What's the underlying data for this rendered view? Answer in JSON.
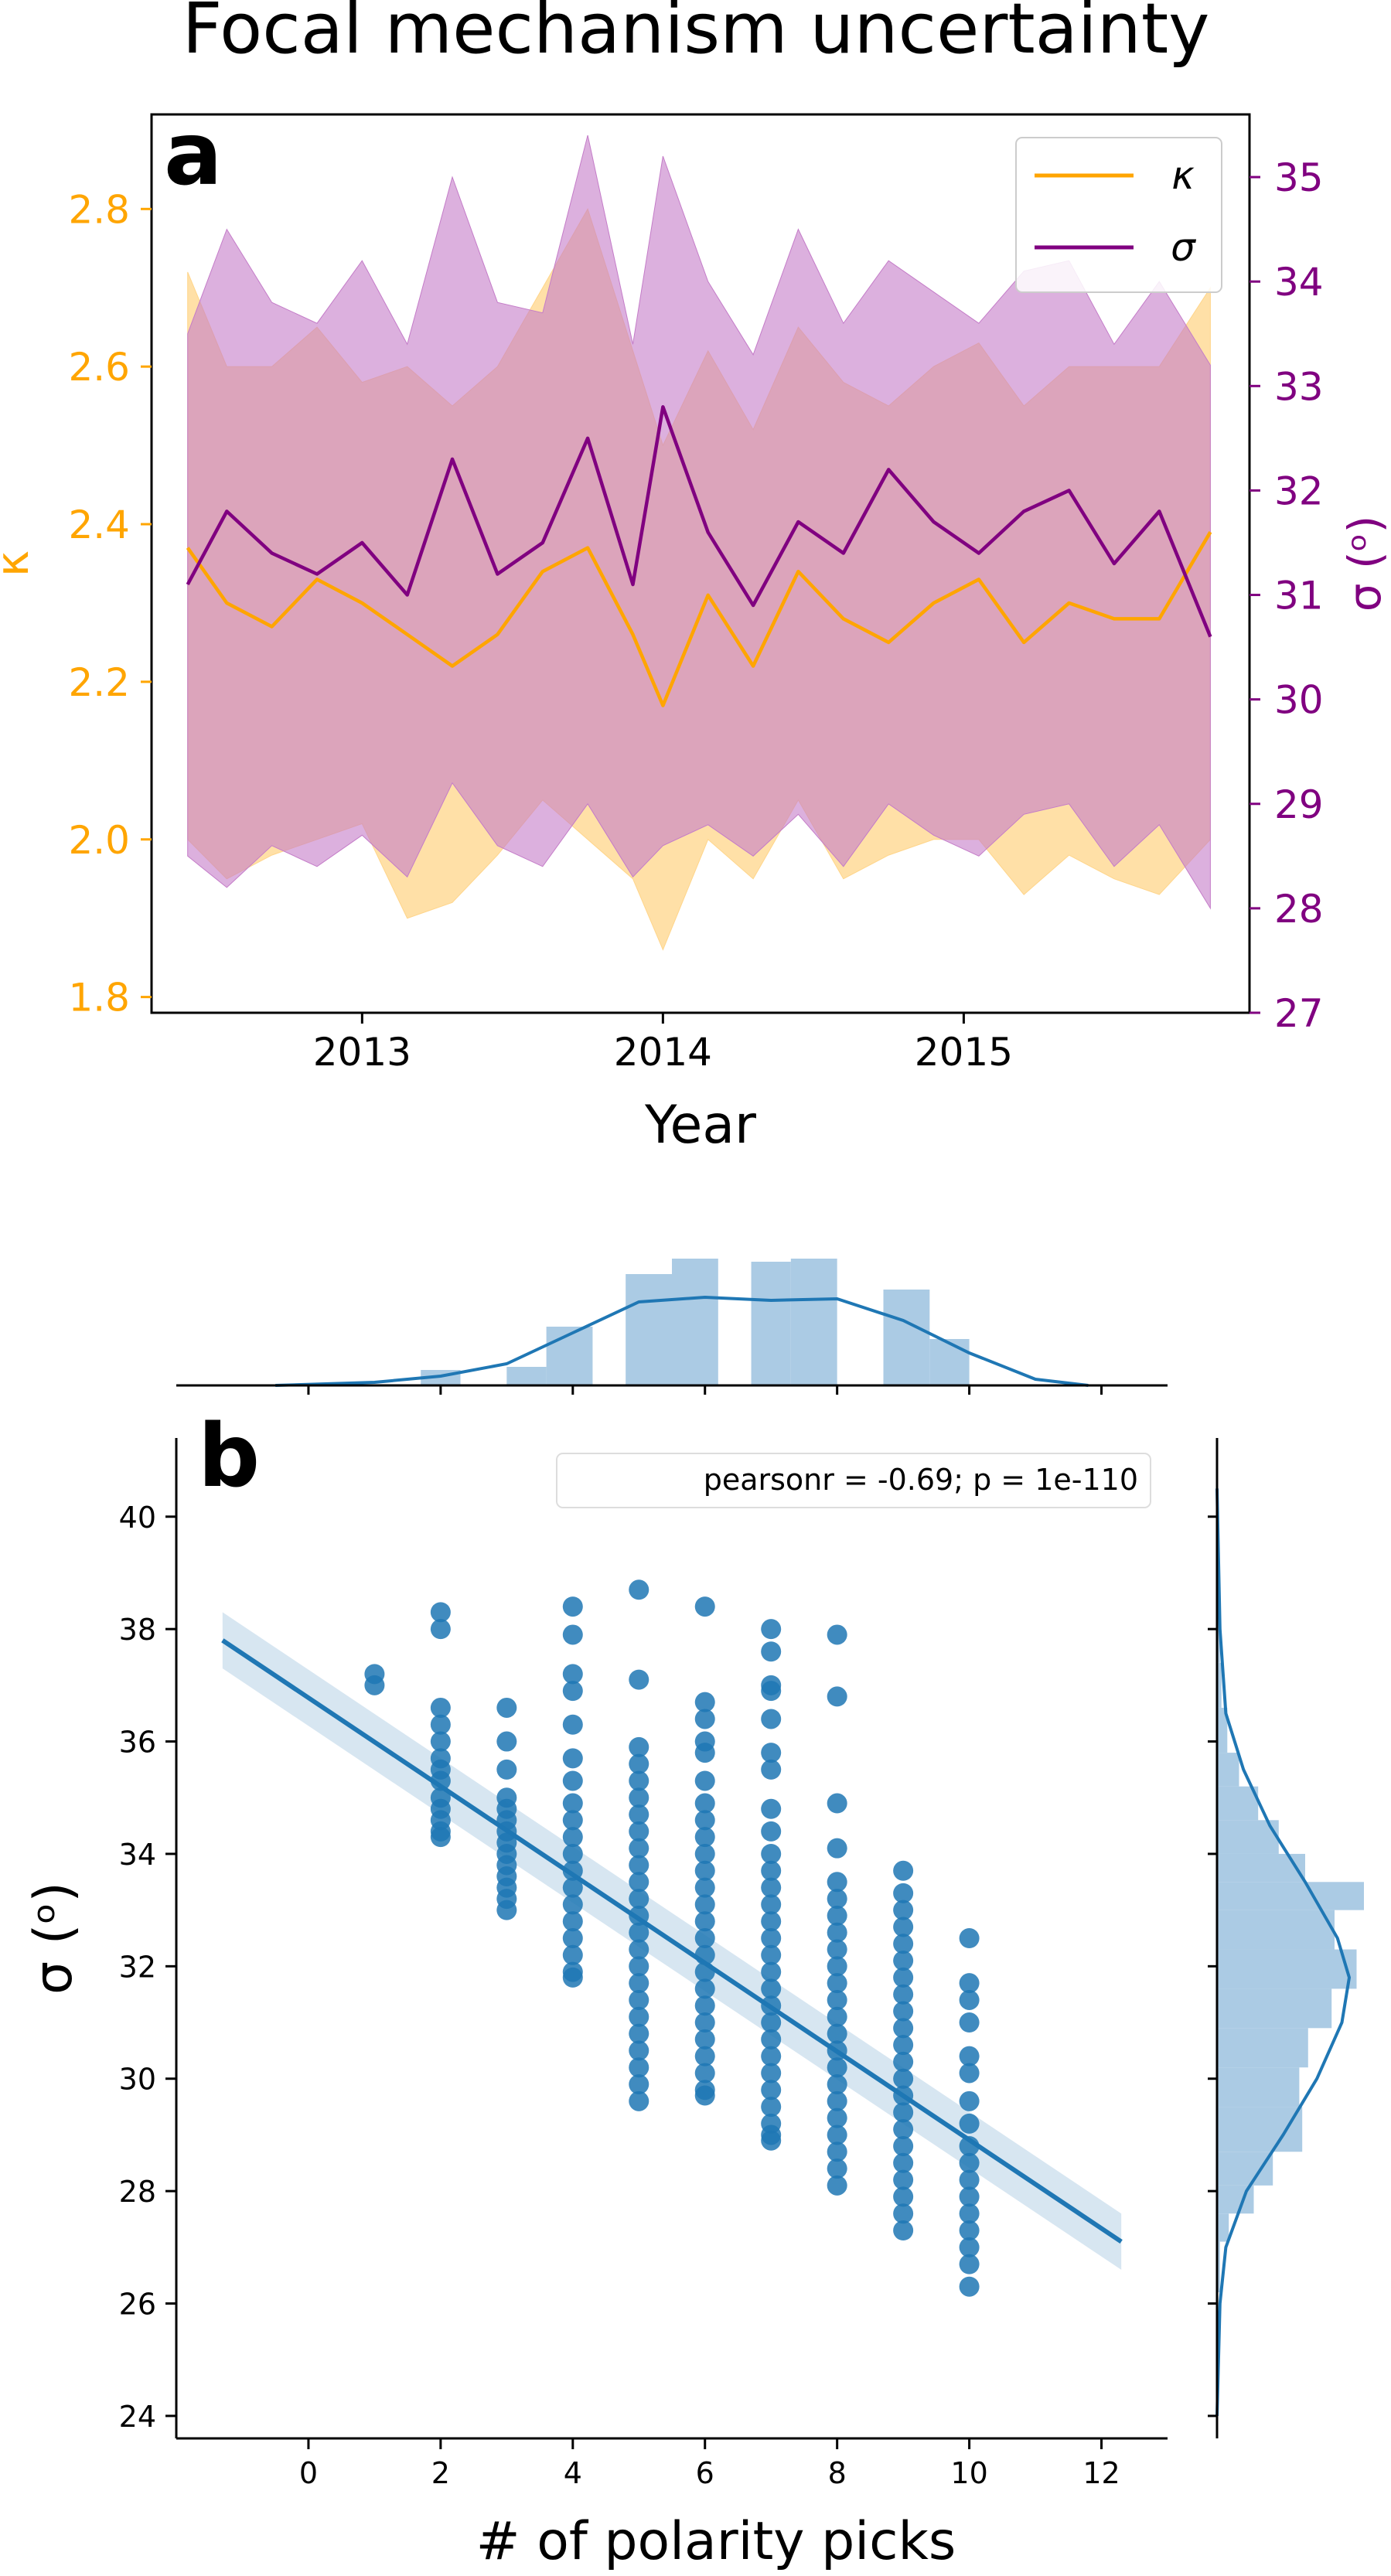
{
  "figure": {
    "title": "Focal mechanism uncertainty",
    "panel_a_label": "a",
    "panel_b_label": "b"
  },
  "colors": {
    "kappa": "#ffa500",
    "kappa_band": "#ffd58a",
    "sigma": "#800080",
    "sigma_band": "#c47cc8",
    "blue": "#1f77b4",
    "blue_light": "#a6c8e3",
    "axis": "#000000"
  },
  "chart_data": [
    {
      "type": "line",
      "panel": "a",
      "xlabel": "Year",
      "x_ticks": [
        "2013",
        "2014",
        "2015"
      ],
      "xlim": [
        2012.3,
        2015.95
      ],
      "ylabel_left": "κ",
      "ylabel_right": "σ (ᵒ)",
      "ylim_left": [
        1.78,
        2.92
      ],
      "ylim_right": [
        27.0,
        35.6
      ],
      "y_ticks_left": [
        "1.8",
        "2.0",
        "2.2",
        "2.4",
        "2.6",
        "2.8"
      ],
      "y_ticks_right": [
        "27",
        "28",
        "29",
        "30",
        "31",
        "32",
        "33",
        "34",
        "35"
      ],
      "legend": {
        "position": "upper right",
        "entries": [
          {
            "label": "κ"
          },
          {
            "label": "σ"
          }
        ]
      },
      "series": [
        {
          "name": "κ",
          "axis": "left",
          "x": [
            2012.42,
            2012.55,
            2012.7,
            2012.85,
            2013.0,
            2013.15,
            2013.3,
            2013.45,
            2013.6,
            2013.75,
            2013.9,
            2014.0,
            2014.15,
            2014.3,
            2014.45,
            2014.6,
            2014.75,
            2014.9,
            2015.05,
            2015.2,
            2015.35,
            2015.5,
            2015.65,
            2015.82
          ],
          "y": [
            2.37,
            2.3,
            2.27,
            2.33,
            2.3,
            2.26,
            2.22,
            2.26,
            2.34,
            2.37,
            2.26,
            2.17,
            2.31,
            2.22,
            2.34,
            2.28,
            2.25,
            2.3,
            2.33,
            2.25,
            2.3,
            2.28,
            2.28,
            2.39
          ],
          "lower": [
            2.0,
            1.95,
            1.98,
            2.0,
            2.02,
            1.9,
            1.92,
            1.98,
            2.05,
            2.0,
            1.95,
            1.86,
            2.0,
            1.95,
            2.05,
            1.95,
            1.98,
            2.0,
            2.0,
            1.93,
            1.98,
            1.95,
            1.93,
            2.0
          ],
          "upper": [
            2.72,
            2.6,
            2.6,
            2.65,
            2.58,
            2.6,
            2.55,
            2.6,
            2.7,
            2.8,
            2.62,
            2.5,
            2.62,
            2.52,
            2.65,
            2.58,
            2.55,
            2.6,
            2.63,
            2.55,
            2.6,
            2.6,
            2.6,
            2.7
          ]
        },
        {
          "name": "σ",
          "axis": "right",
          "x": [
            2012.42,
            2012.55,
            2012.7,
            2012.85,
            2013.0,
            2013.15,
            2013.3,
            2013.45,
            2013.6,
            2013.75,
            2013.9,
            2014.0,
            2014.15,
            2014.3,
            2014.45,
            2014.6,
            2014.75,
            2014.9,
            2015.05,
            2015.2,
            2015.35,
            2015.5,
            2015.65,
            2015.82
          ],
          "y": [
            31.1,
            31.8,
            31.4,
            31.2,
            31.5,
            31.0,
            32.3,
            31.2,
            31.5,
            32.5,
            31.1,
            32.8,
            31.6,
            30.9,
            31.7,
            31.4,
            32.2,
            31.7,
            31.4,
            31.8,
            32.0,
            31.3,
            31.8,
            30.6
          ],
          "lower": [
            28.5,
            28.2,
            28.6,
            28.4,
            28.7,
            28.3,
            29.2,
            28.6,
            28.4,
            29.0,
            28.3,
            28.6,
            28.8,
            28.5,
            28.9,
            28.4,
            29.0,
            28.7,
            28.5,
            28.9,
            29.0,
            28.4,
            28.8,
            28.0
          ],
          "upper": [
            33.5,
            34.5,
            33.8,
            33.6,
            34.2,
            33.4,
            35.0,
            33.8,
            33.7,
            35.4,
            33.4,
            35.2,
            34.0,
            33.3,
            34.5,
            33.6,
            34.2,
            33.9,
            33.6,
            34.1,
            34.2,
            33.4,
            34.0,
            33.2
          ]
        }
      ]
    },
    {
      "type": "scatter",
      "panel": "b",
      "xlabel": "# of polarity picks",
      "ylabel": "σ (ᵒ)",
      "xlim": [
        -2,
        13
      ],
      "ylim": [
        23.6,
        41.4
      ],
      "x_ticks": [
        "0",
        "2",
        "4",
        "6",
        "8",
        "10",
        "12"
      ],
      "y_ticks": [
        "24",
        "26",
        "28",
        "30",
        "32",
        "34",
        "36",
        "38",
        "40"
      ],
      "annotation": "pearsonr = -0.69; p = 1e-110",
      "regression": {
        "x": [
          -1.3,
          12.3
        ],
        "y": [
          37.8,
          27.1
        ]
      },
      "points": [
        {
          "x": 1,
          "y": [
            37.0,
            37.2
          ]
        },
        {
          "x": 2,
          "y": [
            38.3,
            38.0,
            36.6,
            36.3,
            36.0,
            35.7,
            35.5,
            35.3,
            35.0,
            34.8,
            34.6,
            34.4,
            34.3
          ]
        },
        {
          "x": 3,
          "y": [
            36.6,
            36.0,
            35.5,
            35.0,
            34.8,
            34.6,
            34.4,
            34.2,
            34.0,
            33.8,
            33.6,
            33.4,
            33.2,
            33.0
          ]
        },
        {
          "x": 4,
          "y": [
            38.4,
            37.9,
            37.2,
            36.9,
            36.3,
            35.7,
            35.3,
            34.9,
            34.6,
            34.3,
            34.0,
            33.7,
            33.4,
            33.1,
            32.8,
            32.5,
            32.2,
            31.9,
            31.8
          ]
        },
        {
          "x": 5,
          "y": [
            38.7,
            37.1,
            35.9,
            35.6,
            35.3,
            35.0,
            34.7,
            34.4,
            34.1,
            33.8,
            33.5,
            33.2,
            32.9,
            32.6,
            32.3,
            32.0,
            31.7,
            31.4,
            31.1,
            30.8,
            30.5,
            30.2,
            29.9,
            29.6
          ]
        },
        {
          "x": 6,
          "y": [
            38.4,
            36.7,
            36.4,
            36.0,
            35.8,
            35.3,
            34.9,
            34.6,
            34.3,
            34.0,
            33.7,
            33.4,
            33.1,
            32.8,
            32.5,
            32.2,
            31.9,
            31.6,
            31.3,
            31.0,
            30.7,
            30.4,
            30.1,
            29.8,
            29.7
          ]
        },
        {
          "x": 7,
          "y": [
            38.0,
            37.6,
            37.0,
            36.9,
            36.4,
            35.8,
            35.5,
            34.8,
            34.4,
            34.0,
            33.7,
            33.4,
            33.1,
            32.8,
            32.5,
            32.2,
            31.9,
            31.6,
            31.3,
            31.0,
            30.7,
            30.4,
            30.1,
            29.8,
            29.5,
            29.2,
            29.0,
            28.9
          ]
        },
        {
          "x": 8,
          "y": [
            37.9,
            36.8,
            34.9,
            34.1,
            33.5,
            33.2,
            32.9,
            32.6,
            32.3,
            32.0,
            31.7,
            31.4,
            31.1,
            30.8,
            30.5,
            30.2,
            29.9,
            29.6,
            29.3,
            29.0,
            28.7,
            28.4,
            28.1
          ]
        },
        {
          "x": 9,
          "y": [
            33.7,
            33.3,
            33.0,
            32.7,
            32.4,
            32.1,
            31.8,
            31.5,
            31.2,
            30.9,
            30.6,
            30.3,
            30.0,
            29.7,
            29.4,
            29.1,
            28.8,
            28.5,
            28.2,
            27.9,
            27.6,
            27.3
          ]
        },
        {
          "x": 10,
          "y": [
            32.5,
            31.7,
            31.4,
            31.0,
            30.4,
            30.1,
            29.6,
            29.2,
            28.8,
            28.5,
            28.2,
            27.9,
            27.6,
            27.3,
            27.0,
            26.7,
            26.3
          ]
        }
      ],
      "marginal_x": {
        "hist_bins": [
          [
            1.7,
            2.3,
            0.1
          ],
          [
            3.0,
            3.6,
            0.12
          ],
          [
            3.6,
            4.3,
            0.38
          ],
          [
            4.8,
            5.5,
            0.72
          ],
          [
            5.5,
            6.2,
            0.82
          ],
          [
            6.7,
            7.3,
            0.8
          ],
          [
            7.3,
            8.0,
            0.82
          ],
          [
            8.7,
            9.4,
            0.62
          ],
          [
            9.4,
            10.0,
            0.3
          ]
        ],
        "kde_x": [
          -0.5,
          1.0,
          2.0,
          3.0,
          4.0,
          5.0,
          6.0,
          7.0,
          8.0,
          9.0,
          10.0,
          11.0,
          11.8
        ],
        "kde_y": [
          0.0,
          0.02,
          0.06,
          0.14,
          0.34,
          0.54,
          0.57,
          0.55,
          0.56,
          0.42,
          0.21,
          0.04,
          0.0
        ]
      },
      "marginal_y": {
        "hist_bins": [
          [
            26.2,
            27.1,
            0.02
          ],
          [
            27.1,
            27.6,
            0.08
          ],
          [
            27.6,
            28.1,
            0.25
          ],
          [
            28.1,
            28.7,
            0.38
          ],
          [
            28.7,
            29.5,
            0.58
          ],
          [
            29.5,
            30.2,
            0.56
          ],
          [
            30.2,
            30.9,
            0.62
          ],
          [
            30.9,
            31.6,
            0.78
          ],
          [
            31.6,
            32.3,
            0.95
          ],
          [
            32.3,
            33.0,
            0.8
          ],
          [
            33.0,
            33.5,
            1.0
          ],
          [
            33.5,
            34.0,
            0.6
          ],
          [
            34.0,
            34.6,
            0.42
          ],
          [
            34.6,
            35.2,
            0.28
          ],
          [
            35.2,
            35.8,
            0.15
          ],
          [
            35.8,
            36.6,
            0.07
          ],
          [
            36.6,
            37.4,
            0.03
          ],
          [
            37.4,
            38.7,
            0.02
          ]
        ],
        "kde_y": [
          24.0,
          26.0,
          27.0,
          28.0,
          29.0,
          30.0,
          31.0,
          31.8,
          32.5,
          33.5,
          34.5,
          35.5,
          36.5,
          38.0,
          40.5
        ],
        "kde_x": [
          0.0,
          0.02,
          0.06,
          0.2,
          0.45,
          0.68,
          0.85,
          0.9,
          0.82,
          0.6,
          0.36,
          0.18,
          0.06,
          0.02,
          0.0
        ]
      }
    }
  ]
}
